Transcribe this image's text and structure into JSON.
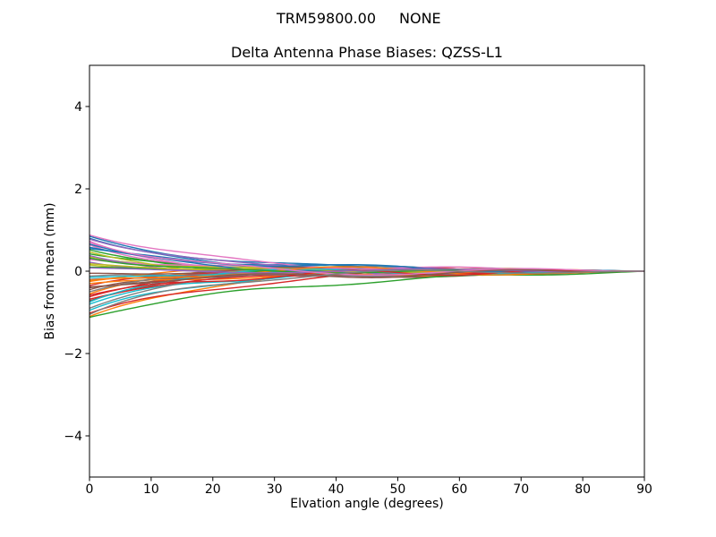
{
  "chart_data": {
    "type": "line",
    "suptitle": {
      "antenna": "TRM59800.00",
      "radome": "NONE"
    },
    "title": "Delta Antenna Phase Biases: QZSS-L1",
    "xlabel": "Elvation angle (degrees)",
    "ylabel": "Bias from mean (mm)",
    "xlim": [
      0,
      90
    ],
    "ylim": [
      -5,
      5
    ],
    "xticks": [
      0,
      10,
      20,
      30,
      40,
      50,
      60,
      70,
      80,
      90
    ],
    "xtick_labels": [
      "0",
      "10",
      "20",
      "30",
      "40",
      "50",
      "60",
      "70",
      "80",
      "90"
    ],
    "yticks": [
      -4,
      -2,
      0,
      2,
      4
    ],
    "ytick_labels": [
      "−4",
      "−2",
      "0",
      "2",
      "4"
    ],
    "grid": false,
    "legend": "none",
    "background": "#ffffff",
    "axis_color": "#000000",
    "palette": [
      "#1f77b4",
      "#ff7f0e",
      "#2ca02c",
      "#d62728",
      "#9467bd",
      "#8c564b",
      "#e377c2",
      "#7f7f7f",
      "#bcbd22",
      "#17becf"
    ],
    "x_sampling": {
      "start_deg": 0,
      "end_deg": 90,
      "step_deg": 0.75
    },
    "series_model": "value(x) = s*exp(-x/t) + a*sin(2*pi*x/p + ph)*4*(x/90)*(1-x/90), tapered to 0 at x=90",
    "series": [
      {
        "s": 0.8,
        "t": 16,
        "a": 0.06,
        "p": 45,
        "ph": 0.5
      },
      {
        "s": -1.1,
        "t": 18,
        "a": 0.08,
        "p": 55,
        "ph": 3.5
      },
      {
        "s": 0.52,
        "t": 12,
        "a": 0.1,
        "p": 40,
        "ph": 1.2
      },
      {
        "s": -0.35,
        "t": 9,
        "a": 0.05,
        "p": 60,
        "ph": 4.0
      },
      {
        "s": 0.3,
        "t": 20,
        "a": 0.07,
        "p": 35,
        "ph": 2.2
      },
      {
        "s": -0.72,
        "t": 14,
        "a": 0.09,
        "p": 50,
        "ph": 5.1
      },
      {
        "s": 0.64,
        "t": 11,
        "a": 0.04,
        "p": 65,
        "ph": 0.9
      },
      {
        "s": -0.2,
        "t": 24,
        "a": 0.11,
        "p": 42,
        "ph": 2.8
      },
      {
        "s": 0.15,
        "t": 13,
        "a": 0.06,
        "p": 58,
        "ph": 4.6
      },
      {
        "s": -0.95,
        "t": 17,
        "a": 0.08,
        "p": 38,
        "ph": 1.6
      },
      {
        "s": 0.85,
        "t": 19,
        "a": 0.05,
        "p": 48,
        "ph": 3.1
      },
      {
        "s": -0.55,
        "t": 10,
        "a": 0.12,
        "p": 62,
        "ph": 5.6
      },
      {
        "s": 0.42,
        "t": 15,
        "a": 0.07,
        "p": 33,
        "ph": 0.3
      },
      {
        "s": -1.02,
        "t": 21,
        "a": 0.09,
        "p": 52,
        "ph": 2.0
      },
      {
        "s": 0.22,
        "t": 8,
        "a": 0.04,
        "p": 44,
        "ph": 3.9
      },
      {
        "s": -0.4,
        "t": 26,
        "a": 0.1,
        "p": 68,
        "ph": 5.9
      },
      {
        "s": 0.7,
        "t": 12,
        "a": 0.06,
        "p": 36,
        "ph": 1.0
      },
      {
        "s": -0.12,
        "t": 18,
        "a": 0.13,
        "p": 56,
        "ph": 2.5
      },
      {
        "s": 0.35,
        "t": 14,
        "a": 0.05,
        "p": 47,
        "ph": 4.3
      },
      {
        "s": -0.8,
        "t": 16,
        "a": 0.08,
        "p": 39,
        "ph": 0.7
      },
      {
        "s": 0.58,
        "t": 22,
        "a": 0.07,
        "p": 61,
        "ph": 3.3
      },
      {
        "s": -0.25,
        "t": 9,
        "a": 0.11,
        "p": 43,
        "ph": 5.3
      },
      {
        "s": 0.1,
        "t": 19,
        "a": 0.04,
        "p": 53,
        "ph": 1.8
      },
      {
        "s": -0.62,
        "t": 13,
        "a": 0.09,
        "p": 37,
        "ph": 4.8
      },
      {
        "s": 0.78,
        "t": 17,
        "a": 0.06,
        "p": 66,
        "ph": 0.1
      },
      {
        "s": -0.45,
        "t": 11,
        "a": 0.12,
        "p": 49,
        "ph": 2.6
      },
      {
        "s": 0.28,
        "t": 23,
        "a": 0.05,
        "p": 41,
        "ph": 4.1
      },
      {
        "s": -0.9,
        "t": 15,
        "a": 0.08,
        "p": 57,
        "ph": 5.7
      },
      {
        "s": 0.47,
        "t": 10,
        "a": 0.1,
        "p": 34,
        "ph": 1.4
      },
      {
        "s": -0.15,
        "t": 20,
        "a": 0.06,
        "p": 63,
        "ph": 3.6
      },
      {
        "s": 0.66,
        "t": 14,
        "a": 0.07,
        "p": 46,
        "ph": 0.8
      },
      {
        "s": -0.3,
        "t": 25,
        "a": 0.09,
        "p": 54,
        "ph": 2.3
      },
      {
        "s": -1.12,
        "t": 30,
        "a": 0.05,
        "p": 40,
        "ph": 4.5
      },
      {
        "s": -0.68,
        "t": 18,
        "a": 0.05,
        "p": 67,
        "ph": 6.0
      },
      {
        "s": 0.38,
        "t": 9,
        "a": 0.08,
        "p": 35,
        "ph": 1.9
      },
      {
        "s": -0.05,
        "t": 16,
        "a": 0.11,
        "p": 51,
        "ph": 3.8
      },
      {
        "s": 0.88,
        "t": 21,
        "a": 0.06,
        "p": 44,
        "ph": 5.4
      },
      {
        "s": -0.5,
        "t": 13,
        "a": 0.09,
        "p": 59,
        "ph": 0.4
      },
      {
        "s": 0.18,
        "t": 17,
        "a": 0.04,
        "p": 38,
        "ph": 2.9
      },
      {
        "s": -0.75,
        "t": 11,
        "a": 0.1,
        "p": 64,
        "ph": 4.9
      },
      {
        "s": 0.55,
        "t": 24,
        "a": 0.07,
        "p": 42,
        "ph": 1.1
      },
      {
        "s": -0.22,
        "t": 15,
        "a": 0.12,
        "p": 55,
        "ph": 3.2
      },
      {
        "s": 0.32,
        "t": 10,
        "a": 0.05,
        "p": 48,
        "ph": 5.8
      },
      {
        "s": -0.58,
        "t": 19,
        "a": 0.08,
        "p": 36,
        "ph": 0.6
      },
      {
        "s": 0.08,
        "t": 14,
        "a": 0.06,
        "p": 62,
        "ph": 2.1
      },
      {
        "s": -0.38,
        "t": 27,
        "a": 0.09,
        "p": 45,
        "ph": 4.4
      },
      {
        "s": 0.73,
        "t": 12,
        "a": 0.11,
        "p": 58,
        "ph": 6.1
      },
      {
        "s": -1.05,
        "t": 16,
        "a": 0.07,
        "p": 50,
        "ph": 1.5
      }
    ]
  }
}
